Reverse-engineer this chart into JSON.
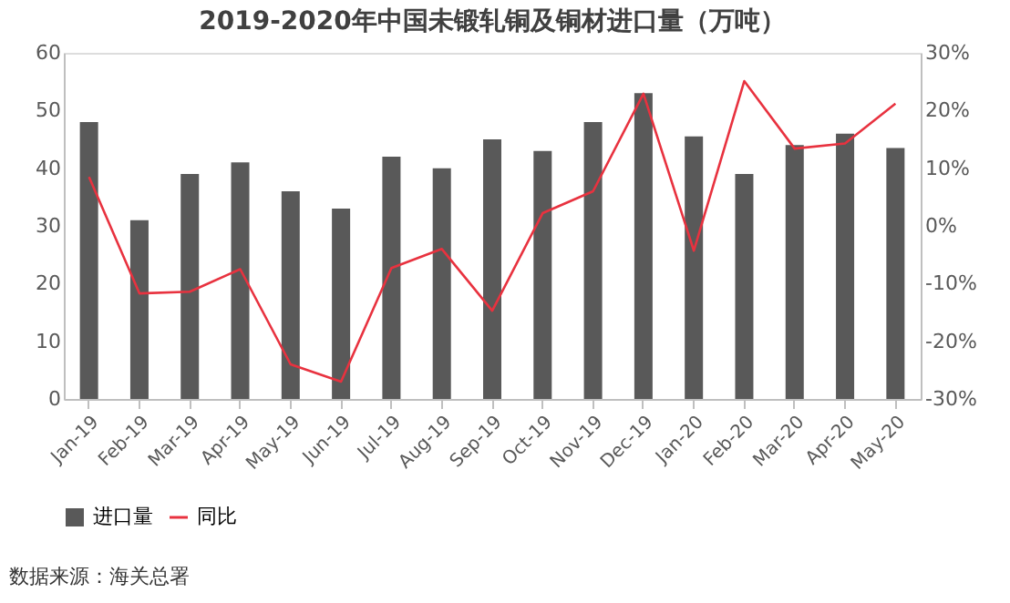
{
  "chart_data": {
    "type": "bar",
    "title": "2019-2020年中国未锻轧铜及铜材进口量（万吨）",
    "categories": [
      "Jan-19",
      "Feb-19",
      "Mar-19",
      "Apr-19",
      "May-19",
      "Jun-19",
      "Jul-19",
      "Aug-19",
      "Sep-19",
      "Oct-19",
      "Nov-19",
      "Dec-19",
      "Jan-20",
      "Feb-20",
      "Mar-20",
      "Apr-20",
      "May-20"
    ],
    "series": [
      {
        "name": "进口量",
        "color": "#595959",
        "values": [
          48,
          31,
          39,
          41,
          36,
          33,
          42,
          40,
          45,
          43,
          48,
          53,
          45.5,
          39,
          44,
          46,
          43.5
        ]
      },
      {
        "name": "同比",
        "type": "line",
        "axis": "y2",
        "color": "#e8323f",
        "values": [
          8.5,
          -11.7,
          -11.4,
          -7.5,
          -24,
          -27,
          -7.3,
          -4,
          -14.7,
          2.2,
          6,
          22.9,
          -4.3,
          25.1,
          13.4,
          14.3,
          21.2
        ]
      }
    ],
    "ylim": [
      0,
      60
    ],
    "yticks": [
      0,
      10,
      20,
      30,
      40,
      50,
      60
    ],
    "y2lim": [
      -30,
      30
    ],
    "y2ticks": [
      {
        "value": -30,
        "label": "-30%"
      },
      {
        "value": -20,
        "label": "-20%"
      },
      {
        "value": -10,
        "label": "-10%"
      },
      {
        "value": 0,
        "label": "0%"
      },
      {
        "value": 10,
        "label": "10%"
      },
      {
        "value": 20,
        "label": "20%"
      },
      {
        "value": 30,
        "label": "30%"
      }
    ],
    "grid": false,
    "legend": "bottom",
    "marker": "none",
    "line_style": "solid",
    "annotations": [
      "数据来源：海关总署"
    ]
  }
}
